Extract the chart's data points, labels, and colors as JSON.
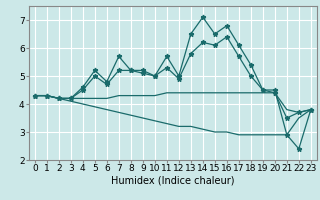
{
  "xlabel": "Humidex (Indice chaleur)",
  "xlim": [
    -0.5,
    23.5
  ],
  "ylim": [
    2,
    7.5
  ],
  "yticks": [
    2,
    3,
    4,
    5,
    6,
    7
  ],
  "xticks": [
    0,
    1,
    2,
    3,
    4,
    5,
    6,
    7,
    8,
    9,
    10,
    11,
    12,
    13,
    14,
    15,
    16,
    17,
    18,
    19,
    20,
    21,
    22,
    23
  ],
  "bg_color": "#cce8e8",
  "grid_color": "#ffffff",
  "line_color": "#1a6b6b",
  "lines": [
    [
      4.3,
      4.3,
      4.2,
      4.2,
      4.6,
      5.2,
      4.8,
      5.7,
      5.2,
      5.2,
      5.0,
      5.7,
      5.0,
      6.5,
      7.1,
      6.5,
      6.8,
      6.1,
      5.4,
      4.5,
      4.5,
      2.9,
      2.4,
      3.8
    ],
    [
      4.3,
      4.3,
      4.2,
      4.2,
      4.5,
      5.0,
      4.7,
      5.2,
      5.2,
      5.1,
      5.0,
      5.3,
      4.9,
      5.8,
      6.2,
      6.1,
      6.4,
      5.7,
      5.0,
      4.5,
      4.4,
      3.5,
      3.7,
      3.8
    ],
    [
      4.3,
      4.3,
      4.2,
      4.2,
      4.2,
      4.2,
      4.2,
      4.3,
      4.3,
      4.3,
      4.3,
      4.4,
      4.4,
      4.4,
      4.4,
      4.4,
      4.4,
      4.4,
      4.4,
      4.4,
      4.4,
      3.8,
      3.7,
      3.8
    ],
    [
      4.3,
      4.3,
      4.2,
      4.1,
      4.0,
      3.9,
      3.8,
      3.7,
      3.6,
      3.5,
      3.4,
      3.3,
      3.2,
      3.2,
      3.1,
      3.0,
      3.0,
      2.9,
      2.9,
      2.9,
      2.9,
      2.9,
      3.5,
      3.8
    ]
  ],
  "show_markers": [
    true,
    true,
    false,
    false
  ],
  "xlabel_fontsize": 7,
  "tick_fontsize": 6.5
}
